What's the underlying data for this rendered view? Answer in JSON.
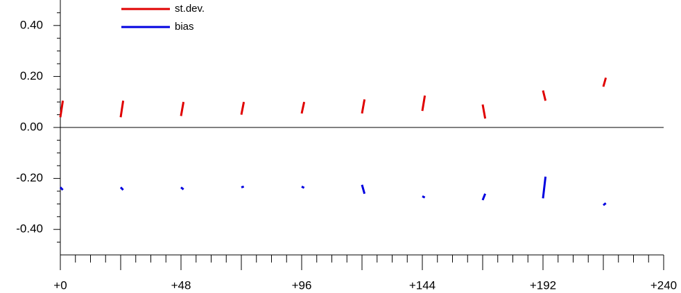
{
  "chart_data": {
    "type": "line",
    "x": [
      0,
      1,
      12,
      24,
      25,
      36,
      48,
      49,
      60,
      72,
      73,
      84,
      96,
      97,
      108,
      120,
      121,
      132,
      144,
      145,
      156,
      168,
      169,
      180,
      192,
      193,
      204,
      216,
      217
    ],
    "series": [
      {
        "name": "st.dev.",
        "color": "#e00000",
        "values": [
          0.04,
          0.105,
          null,
          0.04,
          0.105,
          null,
          0.045,
          0.1,
          null,
          0.05,
          0.1,
          null,
          0.055,
          0.1,
          null,
          0.055,
          0.11,
          null,
          0.065,
          0.125,
          null,
          0.09,
          0.035,
          null,
          0.145,
          0.105,
          null,
          0.16,
          0.195
        ]
      },
      {
        "name": "bias",
        "color": "#0000e0",
        "values": [
          -0.235,
          -0.245,
          null,
          -0.235,
          -0.245,
          null,
          -0.235,
          -0.243,
          null,
          -0.235,
          -0.232,
          null,
          -0.232,
          -0.237,
          null,
          -0.225,
          -0.26,
          null,
          -0.27,
          -0.275,
          null,
          -0.285,
          -0.26,
          null,
          -0.278,
          -0.193,
          null,
          -0.305,
          -0.297
        ]
      }
    ],
    "xlim": [
      0,
      240
    ],
    "xticks": [
      {
        "value": 0,
        "label": "+0"
      },
      {
        "value": 48,
        "label": "+48"
      },
      {
        "value": 96,
        "label": "+96"
      },
      {
        "value": 144,
        "label": "+144"
      },
      {
        "value": 192,
        "label": "+192"
      },
      {
        "value": 240,
        "label": "+240"
      }
    ],
    "xmidticks": [
      24,
      72,
      120,
      168,
      216
    ],
    "xminorticks": [
      6,
      12,
      18,
      30,
      36,
      42,
      54,
      60,
      66,
      78,
      84,
      90,
      102,
      108,
      114,
      126,
      132,
      138,
      150,
      156,
      162,
      174,
      180,
      186,
      198,
      204,
      210,
      222,
      228,
      234
    ],
    "ylim": [
      -0.5,
      0.5
    ],
    "yticks": [
      {
        "value": -0.4,
        "label": "-0.40"
      },
      {
        "value": -0.2,
        "label": "-0.20"
      },
      {
        "value": 0,
        "label": "0.00"
      },
      {
        "value": 0.2,
        "label": "0.20"
      },
      {
        "value": 0.4,
        "label": "0.40"
      }
    ],
    "yminorticks": [
      -0.45,
      -0.35,
      -0.3,
      -0.25,
      -0.15,
      -0.1,
      -0.05,
      0.05,
      0.1,
      0.15,
      0.25,
      0.3,
      0.35,
      0.45
    ],
    "zero_line": 0,
    "legend": "upper left"
  }
}
